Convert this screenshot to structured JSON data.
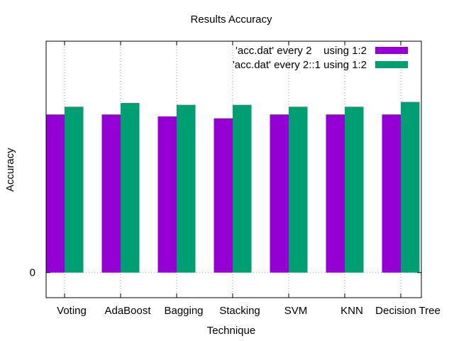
{
  "chart_data": {
    "type": "bar",
    "title": "Results Accuracy",
    "xlabel": "Technique",
    "ylabel": "Accuracy",
    "categories": [
      "Voting",
      "AdaBoost",
      "Bagging",
      "Stacking",
      "SVM",
      "KNN",
      "Decision Tree"
    ],
    "series": [
      {
        "name": "'acc.dat' every 2    using 1:2",
        "color": "#9400d3",
        "values": [
          0.82,
          0.82,
          0.81,
          0.8,
          0.82,
          0.82,
          0.82
        ]
      },
      {
        "name": "'acc.dat' every 2::1 using 1:2",
        "color": "#009e73",
        "values": [
          0.86,
          0.88,
          0.87,
          0.87,
          0.86,
          0.86,
          0.885
        ]
      }
    ],
    "yticks": [
      {
        "value": 0,
        "label": "0"
      }
    ],
    "ylim": [
      -0.13,
      1.2
    ],
    "grid": true,
    "legend_position": "top-right"
  }
}
